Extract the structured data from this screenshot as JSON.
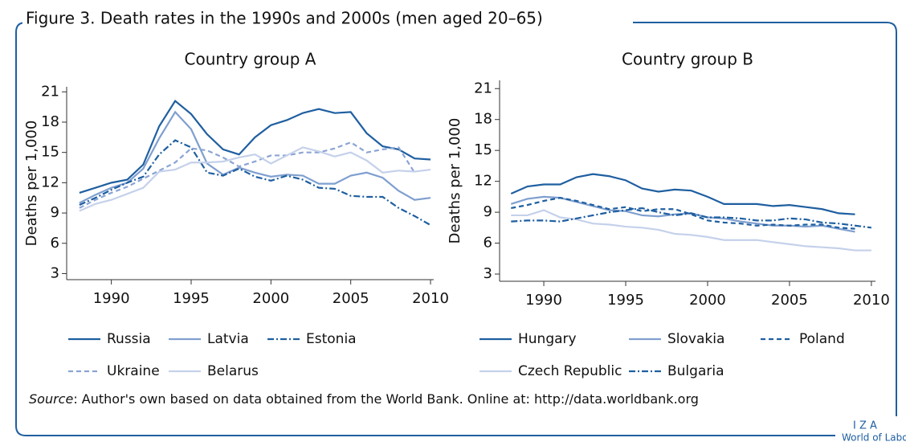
{
  "title": "Figure 3. Death rates in the 1990s and 2000s (men aged 20–65)",
  "source_label": "Source",
  "source_text": ": Author's own based on data obtained from the World Bank. Online at: http://data.worldbank.org",
  "logo": [
    "I Z A",
    "World of Labor"
  ],
  "chart_data": [
    {
      "type": "line",
      "title": "Country group A",
      "ylabel": "Deaths per 1,000",
      "x": [
        1988,
        1989,
        1990,
        1991,
        1992,
        1993,
        1994,
        1995,
        1996,
        1997,
        1998,
        1999,
        2000,
        2001,
        2002,
        2003,
        2004,
        2005,
        2006,
        2007,
        2008,
        2009,
        2010
      ],
      "xlim": [
        1987.2,
        2010.2
      ],
      "xticks": [
        1990,
        1995,
        2000,
        2005,
        2010
      ],
      "ylim": [
        2.4,
        21.5
      ],
      "yticks": [
        3,
        6,
        9,
        12,
        15,
        18,
        21
      ],
      "series": [
        {
          "name": "Russia",
          "color": "#1f5fa0",
          "dash": "solid",
          "values": [
            11.0,
            11.5,
            12.0,
            12.3,
            13.8,
            17.6,
            20.1,
            18.8,
            16.8,
            15.3,
            14.8,
            16.5,
            17.7,
            18.2,
            18.9,
            19.3,
            18.9,
            19.0,
            16.9,
            15.6,
            15.3,
            14.4,
            14.3
          ]
        },
        {
          "name": "Latvia",
          "color": "#7f9fcf",
          "dash": "solid",
          "values": [
            10.0,
            10.8,
            11.5,
            12.0,
            13.4,
            16.4,
            19.0,
            17.3,
            13.9,
            12.8,
            13.5,
            13.0,
            12.6,
            12.8,
            12.7,
            11.9,
            11.9,
            12.7,
            13.0,
            12.5,
            11.2,
            10.3,
            10.5
          ]
        },
        {
          "name": "Estonia",
          "color": "#1f5fa0",
          "dash": "dashdot",
          "values": [
            9.8,
            10.5,
            11.3,
            12.0,
            12.6,
            14.8,
            16.2,
            15.5,
            13.0,
            12.7,
            13.4,
            12.6,
            12.2,
            12.7,
            12.3,
            11.5,
            11.4,
            10.7,
            10.6,
            10.6,
            9.5,
            8.7,
            7.8
          ]
        },
        {
          "name": "Ukraine",
          "color": "#8aa4d4",
          "dash": "dashed",
          "values": [
            9.5,
            10.3,
            11.0,
            11.6,
            12.4,
            13.2,
            14.0,
            15.4,
            15.2,
            14.5,
            13.6,
            14.1,
            14.7,
            14.7,
            15.0,
            15.0,
            15.4,
            16.0,
            15.0,
            15.3,
            15.5,
            13.0,
            null
          ]
        },
        {
          "name": "Belarus",
          "color": "#c5d1ea",
          "dash": "solid",
          "values": [
            9.2,
            9.9,
            10.3,
            10.9,
            11.5,
            13.1,
            13.3,
            14.0,
            14.0,
            14.1,
            14.5,
            14.8,
            13.9,
            14.7,
            15.5,
            15.1,
            14.6,
            15.0,
            14.2,
            13.0,
            13.2,
            13.1,
            13.3
          ]
        }
      ]
    },
    {
      "type": "line",
      "title": "Country group B",
      "ylabel": "Deaths per 1,000",
      "x": [
        1988,
        1989,
        1990,
        1991,
        1992,
        1993,
        1994,
        1995,
        1996,
        1997,
        1998,
        1999,
        2000,
        2001,
        2002,
        2003,
        2004,
        2005,
        2006,
        2007,
        2008,
        2009,
        2010
      ],
      "xlim": [
        1987.3,
        2010.25
      ],
      "xticks": [
        1990,
        1995,
        2000,
        2005,
        2010
      ],
      "ylim": [
        2.3,
        21.8
      ],
      "yticks": [
        3,
        6,
        9,
        12,
        15,
        18,
        21
      ],
      "series": [
        {
          "name": "Hungary",
          "color": "#1f5fa0",
          "dash": "solid",
          "values": [
            10.8,
            11.5,
            11.7,
            11.7,
            12.4,
            12.7,
            12.5,
            12.1,
            11.3,
            11.0,
            11.2,
            11.1,
            10.5,
            9.8,
            9.8,
            9.8,
            9.6,
            9.7,
            9.5,
            9.3,
            8.9,
            8.8,
            null
          ]
        },
        {
          "name": "Slovakia",
          "color": "#7f9fcf",
          "dash": "solid",
          "values": [
            9.8,
            10.3,
            10.5,
            10.4,
            10.0,
            9.6,
            9.2,
            9.1,
            8.7,
            8.6,
            8.8,
            8.9,
            8.5,
            8.4,
            8.1,
            7.9,
            7.7,
            7.7,
            7.6,
            7.7,
            7.4,
            7.1,
            null
          ]
        },
        {
          "name": "Poland",
          "color": "#1f5fa0",
          "dash": "dashed",
          "values": [
            9.4,
            9.7,
            10.1,
            10.4,
            10.1,
            9.7,
            9.3,
            9.5,
            9.1,
            9.3,
            9.3,
            8.8,
            8.2,
            8.0,
            7.9,
            7.7,
            7.8,
            7.7,
            7.8,
            7.8,
            7.5,
            7.4,
            null
          ]
        },
        {
          "name": "Czech Republic",
          "color": "#c5d1ea",
          "dash": "solid",
          "values": [
            8.7,
            8.7,
            9.2,
            8.5,
            8.3,
            7.9,
            7.8,
            7.6,
            7.5,
            7.3,
            6.9,
            6.8,
            6.6,
            6.3,
            6.3,
            6.3,
            6.1,
            5.9,
            5.7,
            5.6,
            5.5,
            5.3,
            5.3
          ]
        },
        {
          "name": "Bulgaria",
          "color": "#1f5fa0",
          "dash": "dashdot",
          "values": [
            8.1,
            8.2,
            8.2,
            8.1,
            8.4,
            8.7,
            9.0,
            9.2,
            9.4,
            9.0,
            8.7,
            8.9,
            8.5,
            8.5,
            8.4,
            8.2,
            8.2,
            8.4,
            8.3,
            8.0,
            7.9,
            7.7,
            7.5
          ]
        }
      ]
    }
  ]
}
